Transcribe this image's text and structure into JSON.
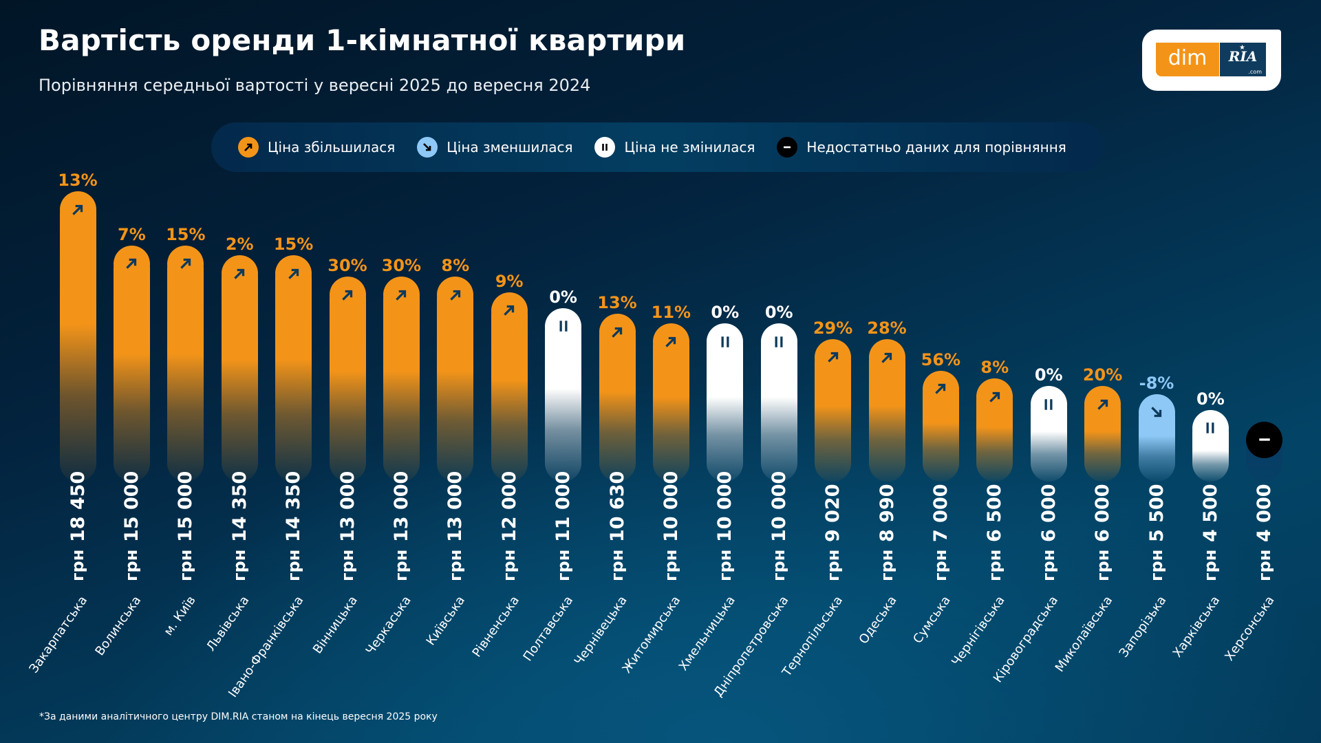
{
  "header": {
    "title": "Вартість оренди 1-кімнатної квартири",
    "subtitle": "Порівняння середньої вартості у вересні 2025 до вересня 2024"
  },
  "logo": {
    "left_text": "dim",
    "right_text": "RIA",
    "right_suffix": ".com",
    "star": "★"
  },
  "legend": [
    {
      "key": "up",
      "label": "Ціна збільшилася",
      "icon": "arrow-up-right-icon"
    },
    {
      "key": "down",
      "label": "Ціна зменшилася",
      "icon": "arrow-down-right-icon"
    },
    {
      "key": "same",
      "label": "Ціна не змінилася",
      "icon": "pause-icon"
    },
    {
      "key": "na",
      "label": "Недостатньо даних для порівняння",
      "icon": "minus-icon"
    }
  ],
  "colors": {
    "up": "#f39419",
    "down": "#8ec8f6",
    "same": "#ffffff",
    "na": "#000000",
    "na_bar": "#0a3a66",
    "glyph": "#0d3a5c"
  },
  "footnote": "*За даними аналітичного центру DIM.RIA станом на кінець вересня 2025 року",
  "chart_data": {
    "type": "bar",
    "title": "Вартість оренди 1-кімнатної квартири",
    "subtitle": "Порівняння середньої вартості у вересні 2025 до вересня 2024",
    "unit": "грн",
    "categories": [
      "Закарпатська",
      "Волинська",
      "м. Київ",
      "Львівська",
      "Івано-Франківська",
      "Вінницька",
      "Черкаська",
      "Київська",
      "Рівненська",
      "Полтавська",
      "Чернівецька",
      "Житомирська",
      "Хмельницька",
      "Дніпропетровська",
      "Тернопільська",
      "Одеська",
      "Сумська",
      "Чернігівська",
      "Кіровоградська",
      "Миколаївська",
      "Запорізька",
      "Харківська",
      "Херсонська"
    ],
    "values": [
      18450,
      15000,
      15000,
      14350,
      14350,
      13000,
      13000,
      13000,
      12000,
      11000,
      10630,
      10000,
      10000,
      10000,
      9020,
      8990,
      7000,
      6500,
      6000,
      6000,
      5500,
      4500,
      4000
    ],
    "value_labels": [
      "18 450",
      "15 000",
      "15 000",
      "14 350",
      "14 350",
      "13 000",
      "13 000",
      "13 000",
      "12 000",
      "11 000",
      "10 630",
      "10 000",
      "10 000",
      "10 000",
      "9 020",
      "8 990",
      "7 000",
      "6 500",
      "6 000",
      "6 000",
      "5 500",
      "4 500",
      "4 000"
    ],
    "change_pct_labels": [
      "13%",
      "7%",
      "15%",
      "2%",
      "15%",
      "30%",
      "30%",
      "8%",
      "9%",
      "0%",
      "13%",
      "11%",
      "0%",
      "0%",
      "29%",
      "28%",
      "56%",
      "8%",
      "0%",
      "20%",
      "-8%",
      "0%",
      ""
    ],
    "change_pct": [
      13,
      7,
      15,
      2,
      15,
      30,
      30,
      8,
      9,
      0,
      13,
      11,
      0,
      0,
      29,
      28,
      56,
      8,
      0,
      20,
      -8,
      0,
      null
    ],
    "status": [
      "up",
      "up",
      "up",
      "up",
      "up",
      "up",
      "up",
      "up",
      "up",
      "same",
      "up",
      "up",
      "same",
      "same",
      "up",
      "up",
      "up",
      "up",
      "same",
      "up",
      "down",
      "same",
      "na"
    ],
    "ylim": [
      0,
      18450
    ],
    "grid": false,
    "legend_position": "top-center"
  }
}
